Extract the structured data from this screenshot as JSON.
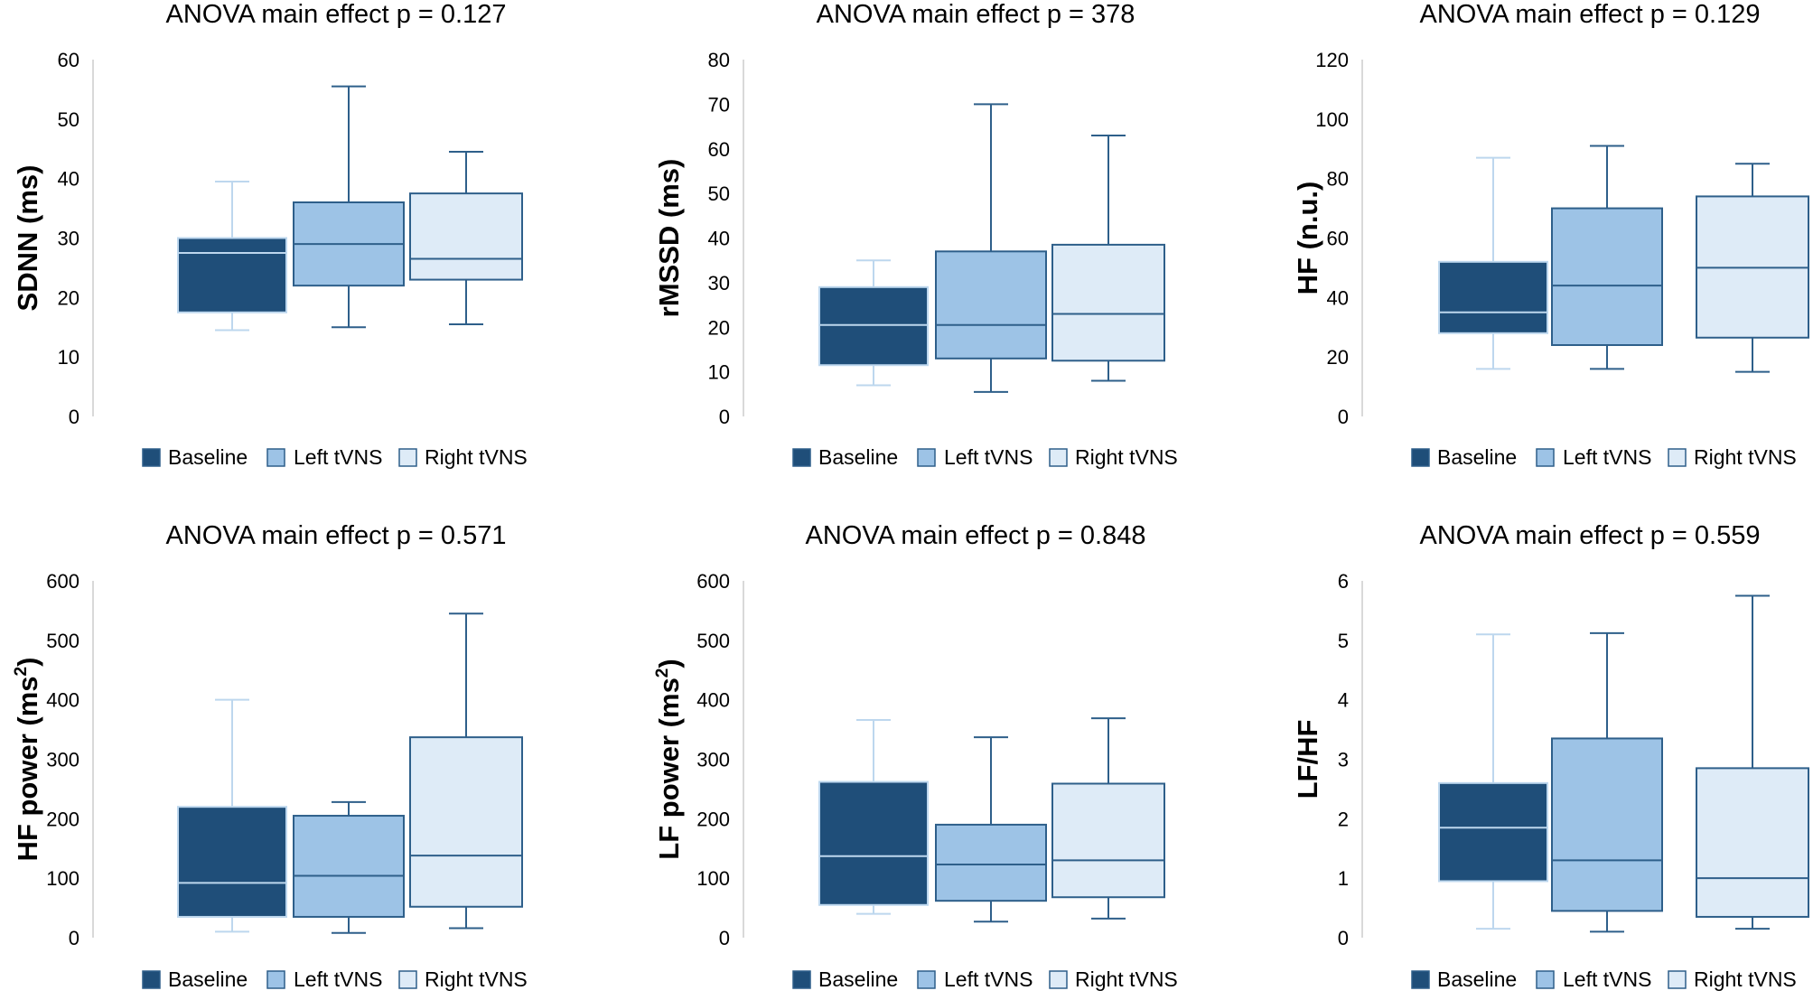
{
  "colors": {
    "baseline_fill": "#1f4e79",
    "left_fill": "#9dc3e6",
    "right_fill": "#deebf7",
    "baseline_whisker": "#bdd7ee",
    "box_edge": "#2e5f8a",
    "axis": "#d9d9d9"
  },
  "chart_data": [
    {
      "type": "box",
      "title": "ANOVA main effect p = 0.127",
      "ylabel": "SDNN (ms)",
      "ylabel_sup": "",
      "ylim": [
        0,
        60
      ],
      "yticks": [
        "0",
        "10",
        "20",
        "30",
        "40",
        "50",
        "60"
      ],
      "legend": [
        "Baseline",
        "Left tVNS",
        "Right tVNS"
      ],
      "series": [
        {
          "name": "Baseline",
          "min": 14.5,
          "q1": 17.5,
          "median": 27.5,
          "q3": 30,
          "max": 39.5
        },
        {
          "name": "Left tVNS",
          "min": 15,
          "q1": 22,
          "median": 29,
          "q3": 36,
          "max": 55.5
        },
        {
          "name": "Right tVNS",
          "min": 15.5,
          "q1": 23,
          "median": 26.5,
          "q3": 37.5,
          "max": 44.5
        }
      ]
    },
    {
      "type": "box",
      "title": "ANOVA main effect p = 378",
      "ylabel": "rMSSD (ms)",
      "ylabel_sup": "",
      "ylim": [
        0,
        80
      ],
      "yticks": [
        "0",
        "10",
        "20",
        "30",
        "40",
        "50",
        "60",
        "70",
        "80"
      ],
      "legend": [
        "Baseline",
        "Left tVNS",
        "Right tVNS"
      ],
      "series": [
        {
          "name": "Baseline",
          "min": 7,
          "q1": 11.5,
          "median": 20.5,
          "q3": 29,
          "max": 35
        },
        {
          "name": "Left tVNS",
          "min": 5.5,
          "q1": 13,
          "median": 20.5,
          "q3": 37,
          "max": 70
        },
        {
          "name": "Right tVNS",
          "min": 8,
          "q1": 12.5,
          "median": 23,
          "q3": 38.5,
          "max": 63
        }
      ]
    },
    {
      "type": "box",
      "title": "ANOVA main effect p = 0.129",
      "ylabel": "HF (n.u.)",
      "ylabel_sup": "",
      "ylim": [
        0,
        120
      ],
      "yticks": [
        "0",
        "20",
        "40",
        "60",
        "80",
        "100",
        "120"
      ],
      "legend": [
        "Baseline",
        "Left tVNS",
        "Right tVNS"
      ],
      "series": [
        {
          "name": "Baseline",
          "min": 16,
          "q1": 28,
          "median": 35,
          "q3": 52,
          "max": 87
        },
        {
          "name": "Left tVNS",
          "min": 16,
          "q1": 24,
          "median": 44,
          "q3": 70,
          "max": 91
        },
        {
          "name": "Right tVNS",
          "min": 15,
          "q1": 26.5,
          "median": 50,
          "q3": 74,
          "max": 85
        }
      ]
    },
    {
      "type": "box",
      "title": "ANOVA main effect p = 0.571",
      "ylabel": "HF power (ms",
      "ylabel_sup": "2",
      "ylim": [
        0,
        600
      ],
      "yticks": [
        "0",
        "100",
        "200",
        "300",
        "400",
        "500",
        "600"
      ],
      "legend": [
        "Baseline",
        "Left tVNS",
        "Right tVNS"
      ],
      "series": [
        {
          "name": "Baseline",
          "min": 10,
          "q1": 35,
          "median": 92,
          "q3": 220,
          "max": 400
        },
        {
          "name": "Left tVNS",
          "min": 8,
          "q1": 35,
          "median": 104,
          "q3": 205,
          "max": 228
        },
        {
          "name": "Right tVNS",
          "min": 16,
          "q1": 52,
          "median": 138,
          "q3": 337,
          "max": 545
        }
      ]
    },
    {
      "type": "box",
      "title": "ANOVA main effect p = 0.848",
      "ylabel": "LF power (ms",
      "ylabel_sup": "2",
      "ylim": [
        0,
        600
      ],
      "yticks": [
        "0",
        "100",
        "200",
        "300",
        "400",
        "500",
        "600"
      ],
      "legend": [
        "Baseline",
        "Left tVNS",
        "Right tVNS"
      ],
      "series": [
        {
          "name": "Baseline",
          "min": 40,
          "q1": 55,
          "median": 137,
          "q3": 262,
          "max": 366
        },
        {
          "name": "Left tVNS",
          "min": 27,
          "q1": 62,
          "median": 123,
          "q3": 190,
          "max": 337
        },
        {
          "name": "Right tVNS",
          "min": 32,
          "q1": 68,
          "median": 130,
          "q3": 259,
          "max": 369
        }
      ]
    },
    {
      "type": "box",
      "title": "ANOVA main effect p = 0.559",
      "ylabel": "LF/HF",
      "ylabel_sup": "",
      "ylim": [
        0,
        6
      ],
      "yticks": [
        "0",
        "1",
        "2",
        "3",
        "4",
        "5",
        "6"
      ],
      "legend": [
        "Baseline",
        "Left tVNS",
        "Right tVNS"
      ],
      "series": [
        {
          "name": "Baseline",
          "min": 0.15,
          "q1": 0.95,
          "median": 1.85,
          "q3": 2.6,
          "max": 5.1
        },
        {
          "name": "Left tVNS",
          "min": 0.1,
          "q1": 0.45,
          "median": 1.3,
          "q3": 3.35,
          "max": 5.12
        },
        {
          "name": "Right tVNS",
          "min": 0.15,
          "q1": 0.35,
          "median": 1.0,
          "q3": 2.85,
          "max": 5.75
        }
      ]
    }
  ]
}
